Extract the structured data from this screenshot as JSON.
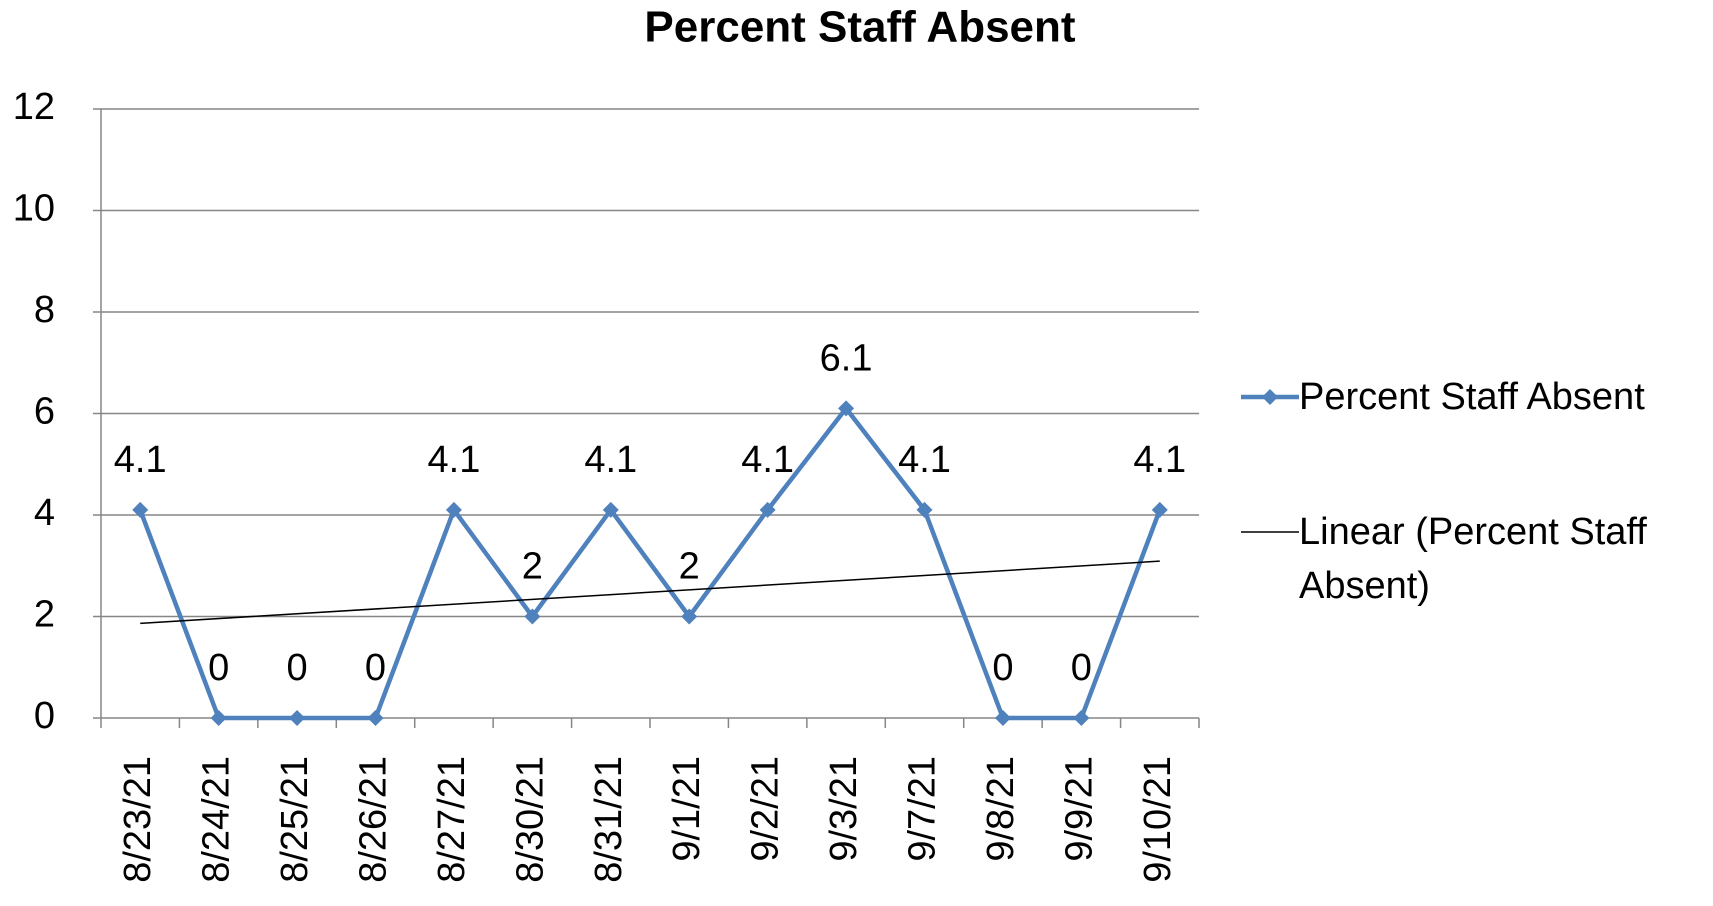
{
  "chart_data": {
    "type": "line",
    "title": "Percent Staff Absent",
    "categories": [
      "8/23/21",
      "8/24/21",
      "8/25/21",
      "8/26/21",
      "8/27/21",
      "8/30/21",
      "8/31/21",
      "9/1/21",
      "9/2/21",
      "9/3/21",
      "9/7/21",
      "9/8/21",
      "9/9/21",
      "9/10/21"
    ],
    "series": [
      {
        "name": "Percent Staff Absent",
        "color": "#4f81bd",
        "values": [
          4.1,
          0,
          0,
          0,
          4.1,
          2,
          4.1,
          2,
          4.1,
          6.1,
          4.1,
          0,
          0,
          4.1
        ]
      }
    ],
    "trendline": {
      "name": "Linear (Percent Staff Absent)",
      "fit": "linear",
      "color": "#000000"
    },
    "ylim": [
      0,
      12
    ],
    "yticks": [
      0,
      2,
      4,
      6,
      8,
      10,
      12
    ],
    "grid": true,
    "data_labels": true,
    "legend": "right"
  }
}
